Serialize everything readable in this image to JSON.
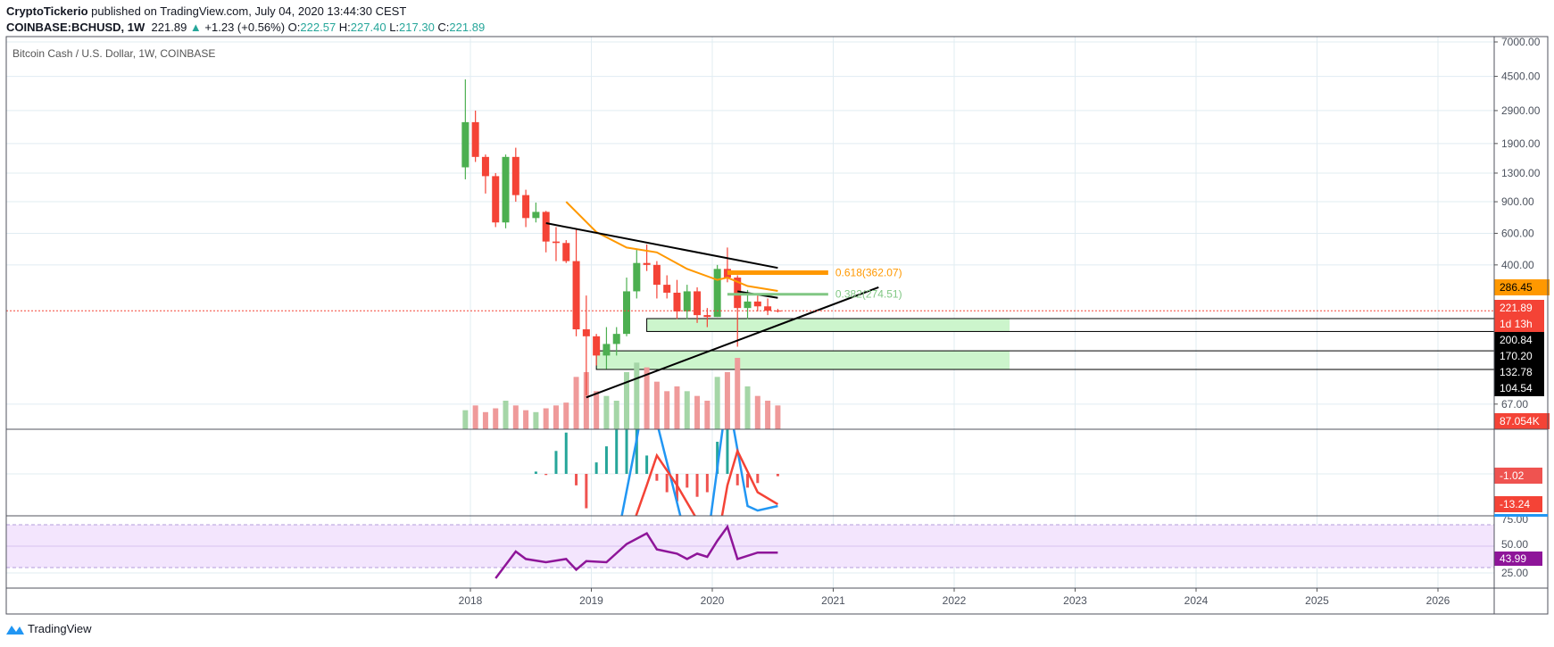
{
  "header": {
    "author": "CryptoTickerio",
    "published_text": "published on TradingView.com, July 04, 2020 13:44:30 CEST",
    "symbol": "COINBASE:BCHUSD, 1W",
    "last": "221.89",
    "change": "+1.23 (+0.56%)",
    "o_label": "O:",
    "o": "222.57",
    "h_label": "H:",
    "h": "227.40",
    "l_label": "L:",
    "l": "217.30",
    "c_label": "C:",
    "c": "221.89",
    "up_icon": "triangle-up-icon"
  },
  "footer": {
    "brand": "TradingView",
    "icon": "tradingview-logo-icon"
  },
  "colors": {
    "up": "#4caf50",
    "down": "#f44336",
    "ma": "#ff9800",
    "macd": "#2196f3",
    "signal": "#f44336",
    "rsi": "#8e1599",
    "zone": "#ccf5cc",
    "rsi_band": "#f3e5fd"
  },
  "chart_data": {
    "type": "candlestick",
    "title": "Bitcoin Cash / U.S. Dollar, 1W, COINBASE",
    "y_scale": "log",
    "yticks": [
      "7000.00",
      "4500.00",
      "2900.00",
      "1900.00",
      "1300.00",
      "900.00",
      "600.00",
      "400.00",
      "67.00"
    ],
    "yticks_values": [
      7000,
      4500,
      2900,
      1900,
      1300,
      900,
      600,
      400,
      67
    ],
    "xticks": [
      "2018",
      "2019",
      "2020",
      "2021",
      "2022",
      "2023",
      "2024",
      "2025",
      "2026"
    ],
    "grid": true,
    "candles": [
      [
        "2017-12",
        1400,
        4330,
        1200,
        2500
      ],
      [
        "2018-01",
        2500,
        2900,
        1500,
        1600
      ],
      [
        "2018-02",
        1600,
        1650,
        1000,
        1250
      ],
      [
        "2018-03",
        1250,
        1300,
        650,
        690
      ],
      [
        "2018-04",
        690,
        1650,
        640,
        1600
      ],
      [
        "2018-05",
        1600,
        1800,
        900,
        980
      ],
      [
        "2018-06",
        980,
        1050,
        650,
        730
      ],
      [
        "2018-07",
        730,
        890,
        690,
        790
      ],
      [
        "2018-08",
        790,
        800,
        470,
        540
      ],
      [
        "2018-09",
        540,
        650,
        420,
        530
      ],
      [
        "2018-10",
        530,
        550,
        410,
        420
      ],
      [
        "2018-11",
        420,
        640,
        160,
        175
      ],
      [
        "2018-12",
        175,
        270,
        75,
        160
      ],
      [
        "2019-01",
        160,
        165,
        110,
        125
      ],
      [
        "2019-02",
        125,
        180,
        105,
        145
      ],
      [
        "2019-03",
        145,
        180,
        125,
        165
      ],
      [
        "2019-04",
        165,
        340,
        160,
        285
      ],
      [
        "2019-05",
        285,
        490,
        260,
        410
      ],
      [
        "2019-06",
        410,
        520,
        370,
        400
      ],
      [
        "2019-07",
        400,
        420,
        260,
        310
      ],
      [
        "2019-08",
        310,
        350,
        260,
        280
      ],
      [
        "2019-09",
        280,
        330,
        200,
        220
      ],
      [
        "2019-10",
        220,
        310,
        200,
        285
      ],
      [
        "2019-11",
        285,
        300,
        190,
        210
      ],
      [
        "2019-12",
        210,
        230,
        180,
        205
      ],
      [
        "2020-01",
        205,
        400,
        205,
        380
      ],
      [
        "2020-02",
        380,
        500,
        320,
        340
      ],
      [
        "2020-03",
        340,
        350,
        140,
        230
      ],
      [
        "2020-04",
        230,
        290,
        200,
        250
      ],
      [
        "2020-05",
        250,
        270,
        220,
        235
      ],
      [
        "2020-06",
        235,
        260,
        210,
        222
      ],
      [
        "2020-07",
        222.57,
        227.4,
        217.3,
        221.89
      ]
    ],
    "volume": [
      20,
      25,
      18,
      22,
      30,
      25,
      20,
      18,
      22,
      25,
      28,
      55,
      60,
      40,
      35,
      30,
      60,
      70,
      65,
      50,
      40,
      45,
      40,
      35,
      30,
      55,
      60,
      75,
      45,
      35,
      30,
      25
    ],
    "moving_average": [
      [
        "2018-10",
        900
      ],
      [
        "2019-01",
        610
      ],
      [
        "2019-04",
        500
      ],
      [
        "2019-07",
        470
      ],
      [
        "2019-10",
        380
      ],
      [
        "2020-01",
        330
      ],
      [
        "2020-02",
        340
      ],
      [
        "2020-04",
        305
      ],
      [
        "2020-07",
        286.45
      ]
    ],
    "trendlines": [
      {
        "from": [
          "2018-08",
          684
        ],
        "to": [
          "2020-07",
          385
        ]
      },
      {
        "from": [
          "2018-12",
          73
        ],
        "to": [
          "2021-05",
          300
        ]
      },
      {
        "from": [
          "2020-03",
          285
        ],
        "to": [
          "2020-07",
          262
        ]
      }
    ],
    "zones": [
      {
        "from": "2019-06",
        "to": "2022-06",
        "top": 200.84,
        "bottom": 170.2
      },
      {
        "from": "2019-01",
        "to": "2022-06",
        "top": 132.78,
        "bottom": 104.54
      }
    ],
    "fib_levels": [
      {
        "label": "0.618(362.07)",
        "value": 362.07,
        "color": "#ff9800",
        "from": "2020-02",
        "to": "2020-12"
      },
      {
        "label": "0.382(274.51)",
        "value": 274.51,
        "color": "#81c784",
        "from": "2020-02",
        "to": "2020-12"
      }
    ],
    "price_labels": [
      {
        "text": "286.45",
        "bg": "#ff9800",
        "fg": "#000"
      },
      {
        "text": "221.89",
        "bg": "#f44336",
        "fg": "#fff"
      },
      {
        "text": "1d 13h",
        "bg": "#f44336",
        "fg": "#fff"
      },
      {
        "text": "200.84",
        "bg": "#000",
        "fg": "#fff"
      },
      {
        "text": "170.20",
        "bg": "#000",
        "fg": "#fff"
      },
      {
        "text": "132.78",
        "bg": "#000",
        "fg": "#fff"
      },
      {
        "text": "104.54",
        "bg": "#000",
        "fg": "#fff"
      },
      {
        "text": "87.054K",
        "bg": "#f44336",
        "fg": "#fff"
      }
    ],
    "macd": {
      "macd_line": [
        [
          "2019-03",
          -30
        ],
        [
          "2019-05",
          15
        ],
        [
          "2019-06",
          40
        ],
        [
          "2019-08",
          5
        ],
        [
          "2019-10",
          -30
        ],
        [
          "2019-12",
          -30
        ],
        [
          "2020-02",
          35
        ],
        [
          "2020-04",
          -14
        ],
        [
          "2020-05",
          -16
        ],
        [
          "2020-07",
          -14
        ]
      ],
      "signal_line": [
        [
          "2019-04",
          -30
        ],
        [
          "2019-06",
          -5
        ],
        [
          "2019-07",
          8
        ],
        [
          "2019-09",
          -5
        ],
        [
          "2019-11",
          -20
        ],
        [
          "2020-01",
          -30
        ],
        [
          "2020-02",
          -5
        ],
        [
          "2020-03",
          10
        ],
        [
          "2020-05",
          -8
        ],
        [
          "2020-07",
          -13.24
        ]
      ],
      "histogram": [
        [
          "2018-07",
          1
        ],
        [
          "2018-08",
          -0.5
        ],
        [
          "2018-09",
          10
        ],
        [
          "2018-10",
          18
        ],
        [
          "2018-11",
          -5
        ],
        [
          "2018-12",
          -15
        ],
        [
          "2019-01",
          5
        ],
        [
          "2019-02",
          12
        ],
        [
          "2019-03",
          20
        ],
        [
          "2019-04",
          25
        ],
        [
          "2019-05",
          20
        ],
        [
          "2019-06",
          8
        ],
        [
          "2019-07",
          -3
        ],
        [
          "2019-08",
          -8
        ],
        [
          "2019-09",
          -12
        ],
        [
          "2019-10",
          -6
        ],
        [
          "2019-11",
          -10
        ],
        [
          "2019-12",
          -8
        ],
        [
          "2020-01",
          14
        ],
        [
          "2020-02",
          20
        ],
        [
          "2020-03",
          -5
        ],
        [
          "2020-04",
          -6
        ],
        [
          "2020-05",
          -4
        ],
        [
          "2020-07",
          -1.02
        ]
      ],
      "labels": [
        "-1.02",
        "-13.24"
      ]
    },
    "rsi": {
      "values": [
        [
          "2018-03",
          20
        ],
        [
          "2018-05",
          45
        ],
        [
          "2018-06",
          38
        ],
        [
          "2018-08",
          35
        ],
        [
          "2018-10",
          38
        ],
        [
          "2018-11",
          28
        ],
        [
          "2018-12",
          36
        ],
        [
          "2019-02",
          35
        ],
        [
          "2019-04",
          52
        ],
        [
          "2019-06",
          62
        ],
        [
          "2019-07",
          47
        ],
        [
          "2019-09",
          43
        ],
        [
          "2019-10",
          38
        ],
        [
          "2019-11",
          43
        ],
        [
          "2019-12",
          40
        ],
        [
          "2020-01",
          55
        ],
        [
          "2020-02",
          68
        ],
        [
          "2020-03",
          38
        ],
        [
          "2020-05",
          44
        ],
        [
          "2020-07",
          43.99
        ]
      ],
      "band": [
        30,
        70
      ],
      "yticks": [
        "75.00",
        "50.00",
        "25.00"
      ],
      "label": "43.99"
    }
  }
}
